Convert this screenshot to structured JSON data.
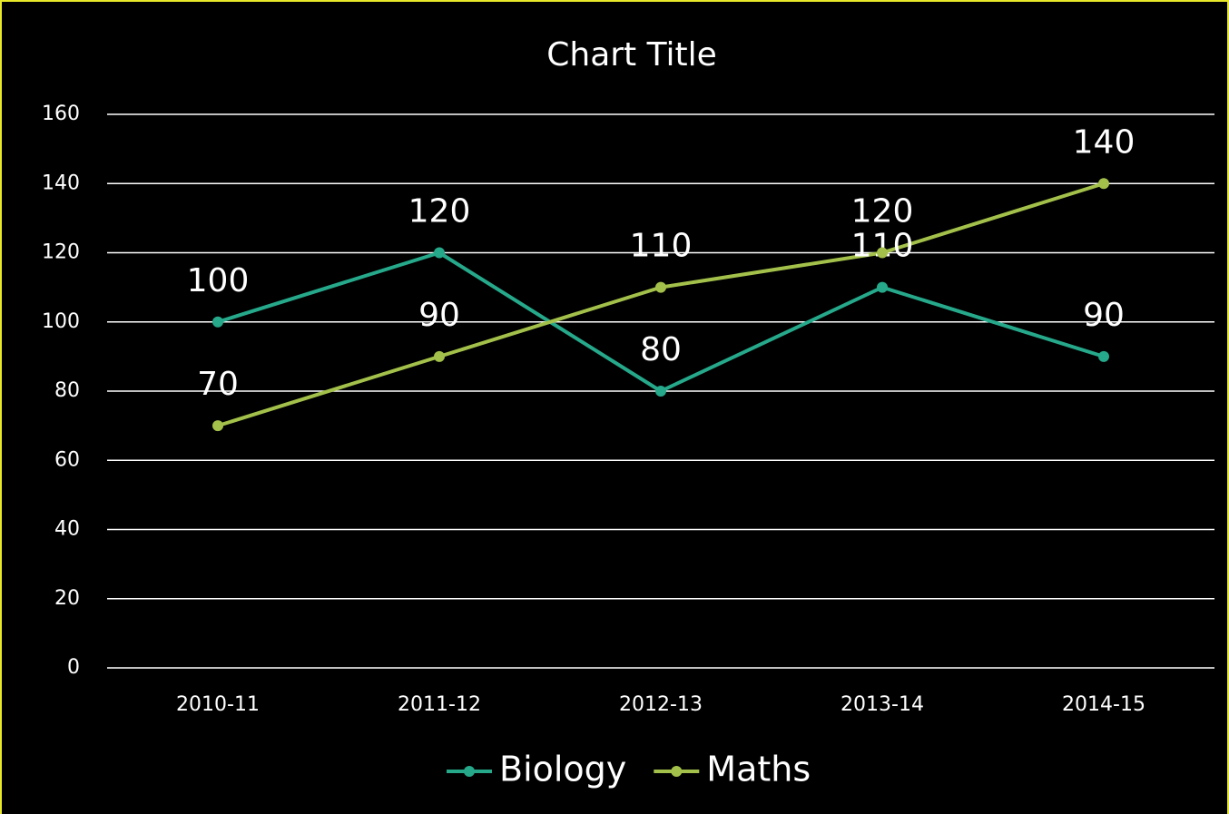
{
  "chart_data": {
    "type": "line",
    "title": "Chart Title",
    "categories": [
      "2010-11",
      "2011-12",
      "2012-13",
      "2013-14",
      "2014-15"
    ],
    "series": [
      {
        "name": "Biology",
        "color": "#26a98b",
        "values": [
          100,
          120,
          80,
          110,
          90
        ]
      },
      {
        "name": "Maths",
        "color": "#a3c14a",
        "values": [
          70,
          90,
          110,
          120,
          140
        ]
      }
    ],
    "ylim": [
      0,
      160
    ],
    "yticks": [
      0,
      20,
      40,
      60,
      80,
      100,
      120,
      140,
      160
    ],
    "grid": true,
    "legend": "bottom"
  }
}
